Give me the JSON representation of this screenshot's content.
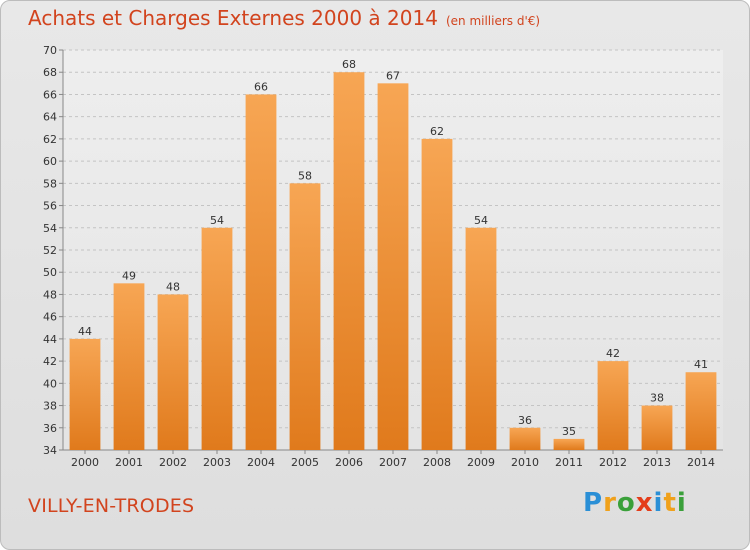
{
  "header": {
    "title": "Achats et Charges Externes 2000 à 2014",
    "subtitle": "(en milliers d'€)"
  },
  "footer": {
    "commune": "VILLY-EN-TRODES",
    "logo": "Proxiti"
  },
  "colors": {
    "title": "#d2441e",
    "bar_top": "#f7a654",
    "bar_bottom": "#e07a1c",
    "logo": [
      "#2a8fd6",
      "#f0a11b",
      "#3aa03a",
      "#e43d1a",
      "#2a8fd6",
      "#f0a11b",
      "#3aa03a"
    ]
  },
  "chart_data": {
    "type": "bar",
    "categories": [
      "2000",
      "2001",
      "2002",
      "2003",
      "2004",
      "2005",
      "2006",
      "2007",
      "2008",
      "2009",
      "2010",
      "2011",
      "2012",
      "2013",
      "2014"
    ],
    "values": [
      44,
      49,
      48,
      54,
      66,
      58,
      68,
      67,
      62,
      54,
      36,
      35,
      42,
      38,
      41
    ],
    "ylim": [
      34,
      70
    ],
    "yticks": [
      34,
      36,
      38,
      40,
      42,
      44,
      46,
      48,
      50,
      52,
      54,
      56,
      58,
      60,
      62,
      64,
      66,
      68,
      70
    ],
    "grid": true
  }
}
